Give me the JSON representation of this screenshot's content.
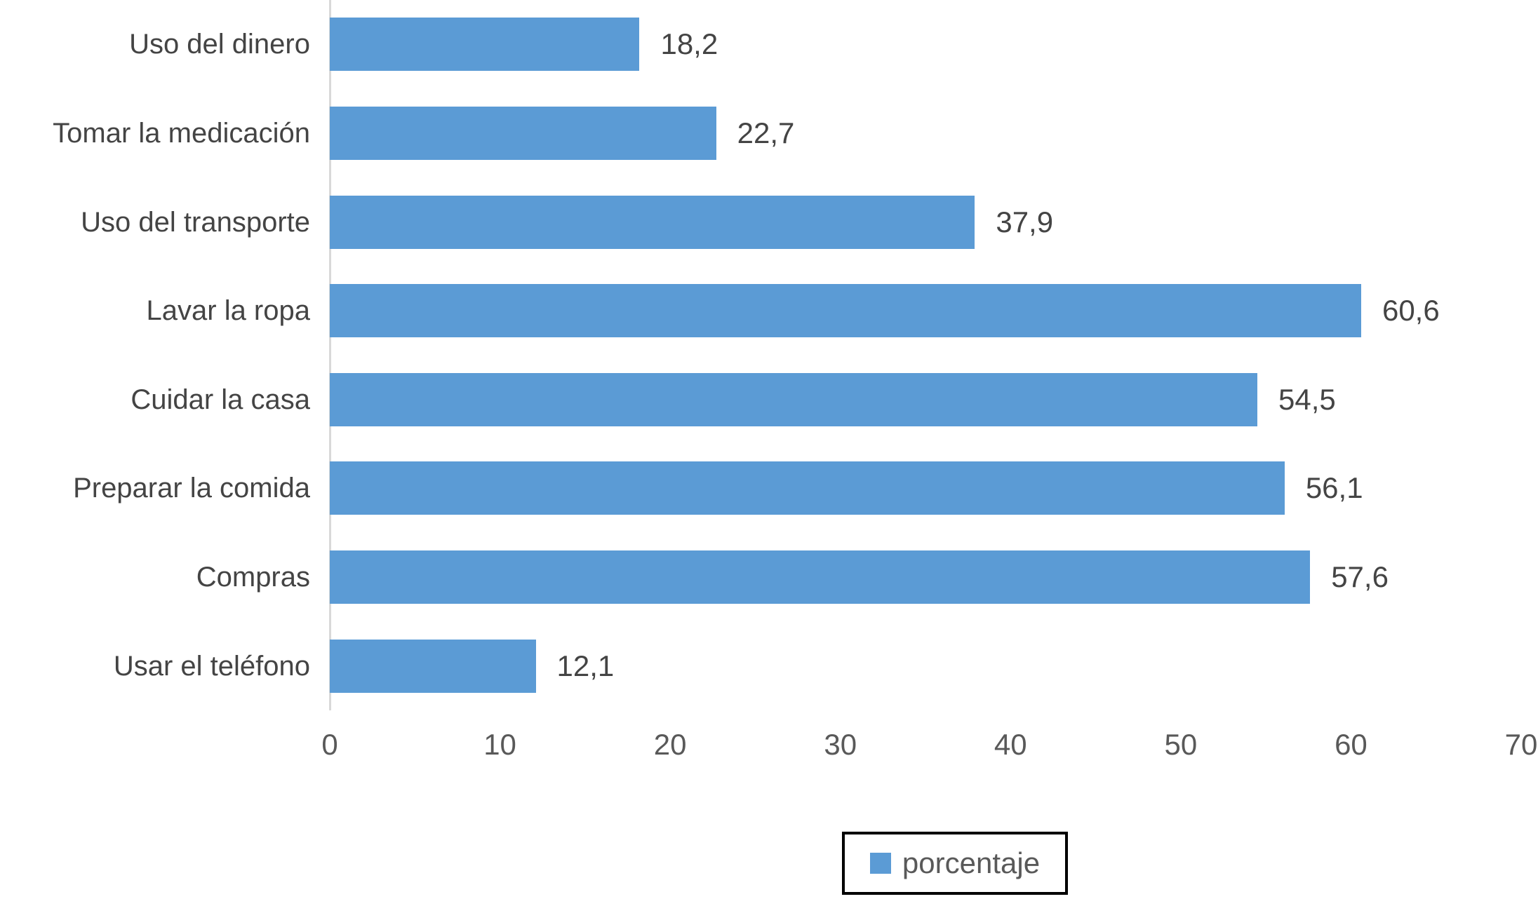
{
  "chart_data": {
    "type": "bar",
    "orientation": "horizontal",
    "title": "",
    "xlabel": "",
    "ylabel": "",
    "categories": [
      "Uso del dinero",
      "Tomar la medicación",
      "Uso del transporte",
      "Lavar la ropa",
      "Cuidar la casa",
      "Preparar la comida",
      "Compras",
      "Usar el teléfono"
    ],
    "values": [
      18.2,
      22.7,
      37.9,
      60.6,
      54.5,
      56.1,
      57.6,
      12.1
    ],
    "value_labels": [
      "18,2",
      "22,7",
      "37,9",
      "60,6",
      "54,5",
      "56,1",
      "57,6",
      "12,1"
    ],
    "x_ticks": [
      "0",
      "10",
      "20",
      "30",
      "40",
      "50",
      "60",
      "70"
    ],
    "xlim": [
      0,
      70
    ],
    "grid": false,
    "legend": {
      "label": "porcentaje",
      "position": "bottom"
    },
    "colors": {
      "bar": "#5B9BD5",
      "axis_line": "#D9D9D9",
      "text": "#444444",
      "tick_text": "#595959",
      "legend_border": "#000000",
      "background": "#FFFFFF"
    }
  }
}
